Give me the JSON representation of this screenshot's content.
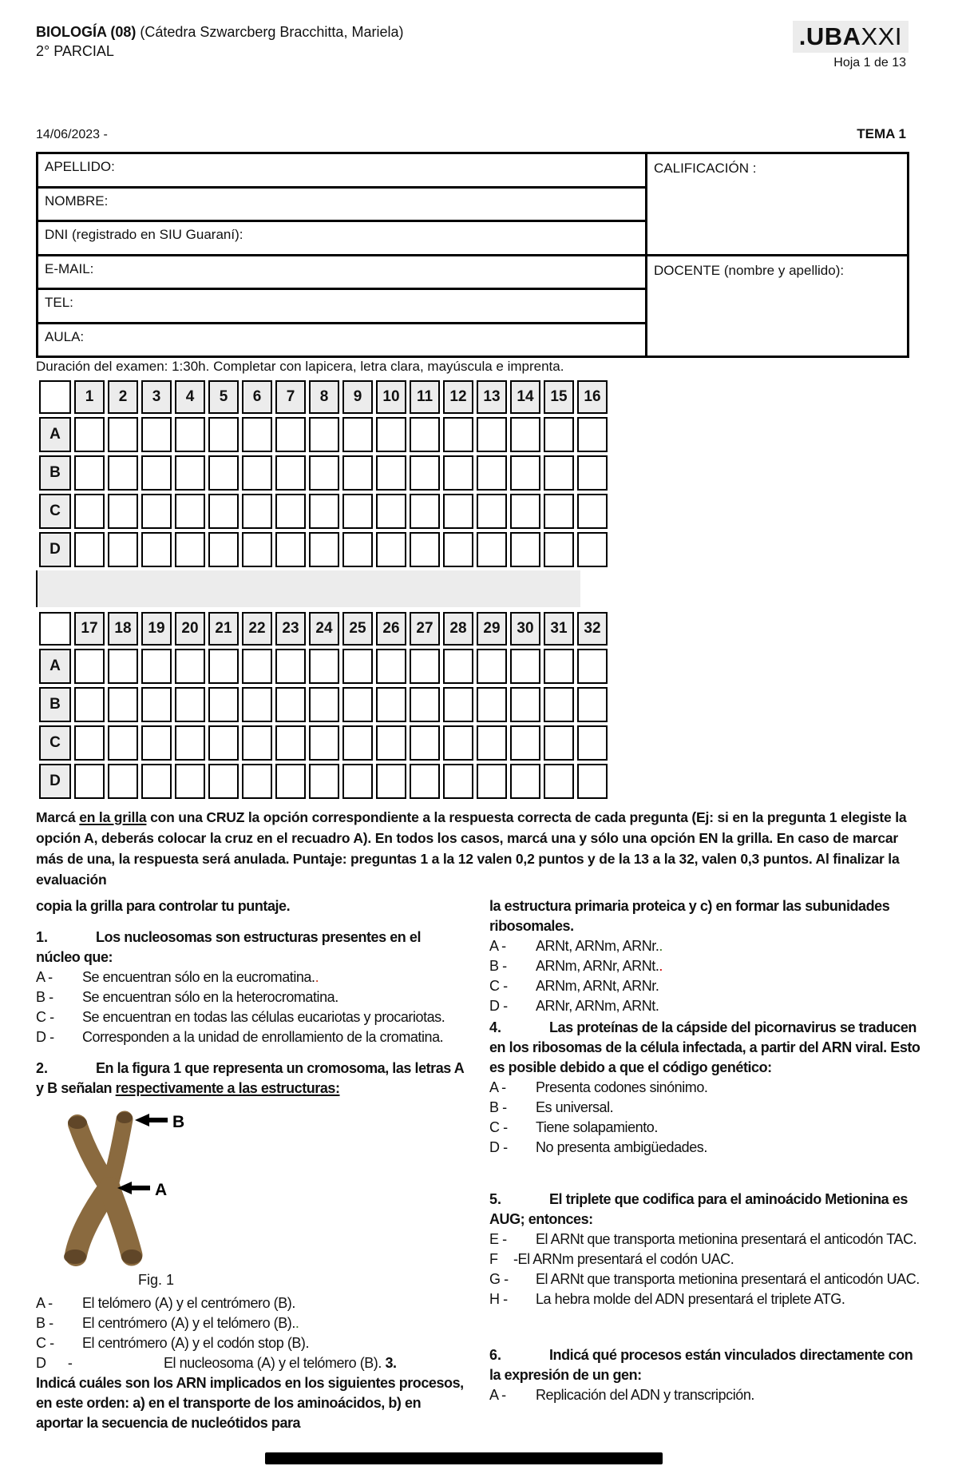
{
  "header": {
    "course_bold": "BIOLOGÍA (08)",
    "course_paren": " (Cátedra Szwarcberg Bracchitta, Mariela)",
    "parcial": "2° PARCIAL",
    "logo_uba": ".UBA",
    "logo_xxi": "XXI",
    "hoja": "Hoja 1 de 13",
    "fecha": "14/06/2023 -",
    "tema": "TEMA 1"
  },
  "form": {
    "fields": [
      "APELLIDO:",
      "NOMBRE:",
      "DNI (registrado en SIU Guaraní):",
      "E-MAIL:",
      "TEL:",
      "AULA:"
    ],
    "calificacion": "CALIFICACIÓN :",
    "docente": "DOCENTE (nombre y apellido):"
  },
  "duracion": "Duración del examen: 1:30h. Completar con lapicera, letra clara, mayúscula e imprenta.",
  "grid": {
    "row_labels": [
      "A",
      "B",
      "C",
      "D"
    ],
    "columns_top": [
      "1",
      "2",
      "3",
      "4",
      "5",
      "6",
      "7",
      "8",
      "9",
      "10",
      "11",
      "12",
      "13",
      "14",
      "15",
      "16"
    ],
    "columns_bottom": [
      "17",
      "18",
      "19",
      "20",
      "21",
      "22",
      "23",
      "24",
      "25",
      "26",
      "27",
      "28",
      "29",
      "30",
      "31",
      "32"
    ]
  },
  "instructions": {
    "para_pre": "Marcá ",
    "para_underline": "en la grilla",
    "para_rest": " con una CRUZ la opción correspondiente a la respuesta correcta de cada pregunta (Ej: si en la pregunta 1 elegiste la opción A, deberás colocar la cruz en el recuadro A). En todos los casos, marcá una y sólo una opción EN la grilla. En caso de marcar más de una, la respuesta será anulada. Puntaje: preguntas 1 a la 12 valen 0,2 puntos y de la 13 a la 32, valen 0,3 puntos. Al finalizar la evaluación",
    "continuation": "copia la grilla para controlar tu puntaje."
  },
  "questions": {
    "q1": {
      "number": "1.",
      "title": "Los nucleosomas son estructuras presentes en el núcleo que:",
      "options": [
        {
          "label": "A -",
          "text": "Se encuentran sólo en la eucromatina.",
          "dot": ".",
          "dot_color": "#cc4125"
        },
        {
          "label": "B -",
          "text": "Se encuentran sólo en la heterocromatina."
        },
        {
          "label": "C -",
          "text": "Se encuentran en todas las células eucariotas y procariotas."
        },
        {
          "label": "D -",
          "text": "Corresponden a la unidad de enrollamiento de la cromatina."
        }
      ]
    },
    "q2": {
      "number": "2.",
      "title_pre": "En la figura 1 que representa un cromosoma, las letras A y B señalan ",
      "title_underline": "respectivamente a las estructuras:",
      "fig_caption": "Fig. 1",
      "fig_label_a": "A",
      "fig_label_b": "B",
      "options": [
        {
          "label": "A -",
          "text": "El telómero (A) y el centrómero (B)."
        },
        {
          "label": "B -",
          "text": "El centrómero (A) y el telómero (B).",
          "dot": ".",
          "dot_color": "#38761d"
        },
        {
          "label": "C -",
          "text": "El centrómero (A) y el codón stop (B)."
        },
        {
          "label": "D      -",
          "text": "El nucleosoma (A) y el telómero (B).",
          "bold_suffix": "3.",
          "wide": true
        }
      ]
    },
    "q3": {
      "intro_bold": "Indicá cuáles son los ARN implicados en los siguientes procesos, en este orden: a) en el transporte de los aminoácidos, b) en aportar la secuencia de nucleótidos para",
      "continuation_bold": "la estructura primaria proteica y c) en formar las subunidades ribosomales.",
      "options": [
        {
          "label": "A -",
          "text": "ARNt, ARNm, ARNr.",
          "dot": ".",
          "dot_color": "#38761d"
        },
        {
          "label": "B -",
          "text": "ARNm, ARNr, ARNt.",
          "dot": ".",
          "dot_color": "#cc0000"
        },
        {
          "label": "C -",
          "text": "ARNm, ARNt, ARNr."
        },
        {
          "label": "D -",
          "text": "ARNr, ARNm, ARNt."
        }
      ]
    },
    "q4": {
      "number": "4.",
      "title": "Las proteínas de la cápside del picornavirus se traducen en los ribosomas de la célula infectada, a partir del ARN viral. Esto es posible debido a que el código genético:",
      "options": [
        {
          "label": "A -",
          "text": "Presenta codones sinónimo."
        },
        {
          "label": "B -",
          "text": "Es universal."
        },
        {
          "label": "C -",
          "text": "Tiene solapamiento."
        },
        {
          "label": "D -",
          "text": "No presenta ambigüedades."
        }
      ]
    },
    "q5": {
      "number": "5.",
      "title": "El triplete que codifica para el aminoácido Metionina es AUG; entonces:",
      "options": [
        {
          "label": "E -",
          "text": "El ARNt que transporta metionina presentará el anticodón TAC."
        },
        {
          "label": "F",
          "text": "-El ARNm presentará el codón UAC.",
          "narrow": true
        },
        {
          "label": "G -",
          "text": "El ARNt que transporta metionina presentará el anticodón UAC."
        },
        {
          "label": "H -",
          "text": "La hebra molde del ADN presentará el triplete ATG."
        }
      ]
    },
    "q6": {
      "number": "6.",
      "title": "Indicá qué procesos están vinculados directamente con la expresión de un gen:",
      "options": [
        {
          "label": "A -",
          "text": "Replicación del ADN y transcripción."
        }
      ]
    }
  },
  "colors": {
    "grid_cell_gray": "#ececec",
    "border_black": "#000000",
    "chromosome_brown": "#8a6a3f",
    "chromosome_dark": "#5b4226"
  }
}
